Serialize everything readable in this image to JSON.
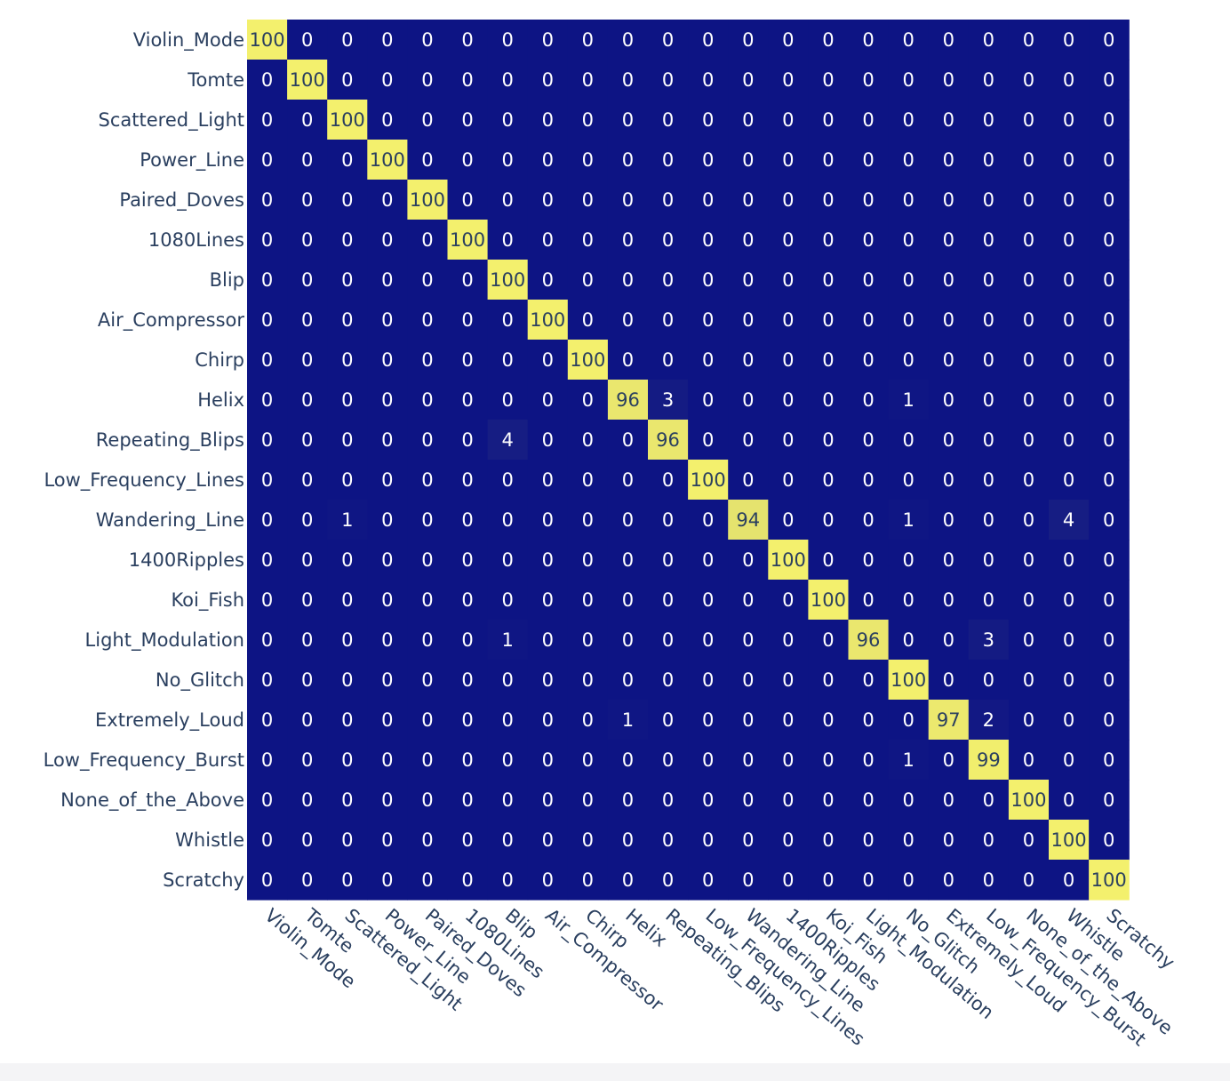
{
  "chart_data": {
    "type": "heatmap",
    "title": "",
    "xlabel": "",
    "ylabel": "",
    "x_categories": [
      "Violin_Mode",
      "Tomte",
      "Scattered_Light",
      "Power_Line",
      "Paired_Doves",
      "1080Lines",
      "Blip",
      "Air_Compressor",
      "Chirp",
      "Helix",
      "Repeating_Blips",
      "Low_Frequency_Lines",
      "Wandering_Line",
      "1400Ripples",
      "Koi_Fish",
      "Light_Modulation",
      "No_Glitch",
      "Extremely_Loud",
      "Low_Frequency_Burst",
      "None_of_the_Above",
      "Whistle",
      "Scratchy"
    ],
    "y_categories": [
      "Violin_Mode",
      "Tomte",
      "Scattered_Light",
      "Power_Line",
      "Paired_Doves",
      "1080Lines",
      "Blip",
      "Air_Compressor",
      "Chirp",
      "Helix",
      "Repeating_Blips",
      "Low_Frequency_Lines",
      "Wandering_Line",
      "1400Ripples",
      "Koi_Fish",
      "Light_Modulation",
      "No_Glitch",
      "Extremely_Loud",
      "Low_Frequency_Burst",
      "None_of_the_Above",
      "Whistle",
      "Scratchy"
    ],
    "z": [
      [
        100,
        0,
        0,
        0,
        0,
        0,
        0,
        0,
        0,
        0,
        0,
        0,
        0,
        0,
        0,
        0,
        0,
        0,
        0,
        0,
        0,
        0
      ],
      [
        0,
        100,
        0,
        0,
        0,
        0,
        0,
        0,
        0,
        0,
        0,
        0,
        0,
        0,
        0,
        0,
        0,
        0,
        0,
        0,
        0,
        0
      ],
      [
        0,
        0,
        100,
        0,
        0,
        0,
        0,
        0,
        0,
        0,
        0,
        0,
        0,
        0,
        0,
        0,
        0,
        0,
        0,
        0,
        0,
        0
      ],
      [
        0,
        0,
        0,
        100,
        0,
        0,
        0,
        0,
        0,
        0,
        0,
        0,
        0,
        0,
        0,
        0,
        0,
        0,
        0,
        0,
        0,
        0
      ],
      [
        0,
        0,
        0,
        0,
        100,
        0,
        0,
        0,
        0,
        0,
        0,
        0,
        0,
        0,
        0,
        0,
        0,
        0,
        0,
        0,
        0,
        0
      ],
      [
        0,
        0,
        0,
        0,
        0,
        100,
        0,
        0,
        0,
        0,
        0,
        0,
        0,
        0,
        0,
        0,
        0,
        0,
        0,
        0,
        0,
        0
      ],
      [
        0,
        0,
        0,
        0,
        0,
        0,
        100,
        0,
        0,
        0,
        0,
        0,
        0,
        0,
        0,
        0,
        0,
        0,
        0,
        0,
        0,
        0
      ],
      [
        0,
        0,
        0,
        0,
        0,
        0,
        0,
        100,
        0,
        0,
        0,
        0,
        0,
        0,
        0,
        0,
        0,
        0,
        0,
        0,
        0,
        0
      ],
      [
        0,
        0,
        0,
        0,
        0,
        0,
        0,
        0,
        100,
        0,
        0,
        0,
        0,
        0,
        0,
        0,
        0,
        0,
        0,
        0,
        0,
        0
      ],
      [
        0,
        0,
        0,
        0,
        0,
        0,
        0,
        0,
        0,
        96,
        3,
        0,
        0,
        0,
        0,
        0,
        1,
        0,
        0,
        0,
        0,
        0
      ],
      [
        0,
        0,
        0,
        0,
        0,
        0,
        4,
        0,
        0,
        0,
        96,
        0,
        0,
        0,
        0,
        0,
        0,
        0,
        0,
        0,
        0,
        0
      ],
      [
        0,
        0,
        0,
        0,
        0,
        0,
        0,
        0,
        0,
        0,
        0,
        100,
        0,
        0,
        0,
        0,
        0,
        0,
        0,
        0,
        0,
        0
      ],
      [
        0,
        0,
        1,
        0,
        0,
        0,
        0,
        0,
        0,
        0,
        0,
        0,
        94,
        0,
        0,
        0,
        1,
        0,
        0,
        0,
        4,
        0
      ],
      [
        0,
        0,
        0,
        0,
        0,
        0,
        0,
        0,
        0,
        0,
        0,
        0,
        0,
        100,
        0,
        0,
        0,
        0,
        0,
        0,
        0,
        0
      ],
      [
        0,
        0,
        0,
        0,
        0,
        0,
        0,
        0,
        0,
        0,
        0,
        0,
        0,
        0,
        100,
        0,
        0,
        0,
        0,
        0,
        0,
        0
      ],
      [
        0,
        0,
        0,
        0,
        0,
        0,
        1,
        0,
        0,
        0,
        0,
        0,
        0,
        0,
        0,
        96,
        0,
        0,
        3,
        0,
        0,
        0
      ],
      [
        0,
        0,
        0,
        0,
        0,
        0,
        0,
        0,
        0,
        0,
        0,
        0,
        0,
        0,
        0,
        0,
        100,
        0,
        0,
        0,
        0,
        0
      ],
      [
        0,
        0,
        0,
        0,
        0,
        0,
        0,
        0,
        0,
        1,
        0,
        0,
        0,
        0,
        0,
        0,
        0,
        97,
        2,
        0,
        0,
        0
      ],
      [
        0,
        0,
        0,
        0,
        0,
        0,
        0,
        0,
        0,
        0,
        0,
        0,
        0,
        0,
        0,
        0,
        1,
        0,
        99,
        0,
        0,
        0
      ],
      [
        0,
        0,
        0,
        0,
        0,
        0,
        0,
        0,
        0,
        0,
        0,
        0,
        0,
        0,
        0,
        0,
        0,
        0,
        0,
        100,
        0,
        0
      ],
      [
        0,
        0,
        0,
        0,
        0,
        0,
        0,
        0,
        0,
        0,
        0,
        0,
        0,
        0,
        0,
        0,
        0,
        0,
        0,
        0,
        100,
        0
      ],
      [
        0,
        0,
        0,
        0,
        0,
        0,
        0,
        0,
        0,
        0,
        0,
        0,
        0,
        0,
        0,
        0,
        0,
        0,
        0,
        0,
        0,
        100
      ]
    ],
    "zlim": [
      0,
      100
    ],
    "colorscale": [
      "#0d1484",
      "#f3f06d"
    ],
    "label_color_dark_cells": "#ffffff",
    "label_color_light_cells": "#2a3f5f",
    "grid": false,
    "legend": "none"
  }
}
